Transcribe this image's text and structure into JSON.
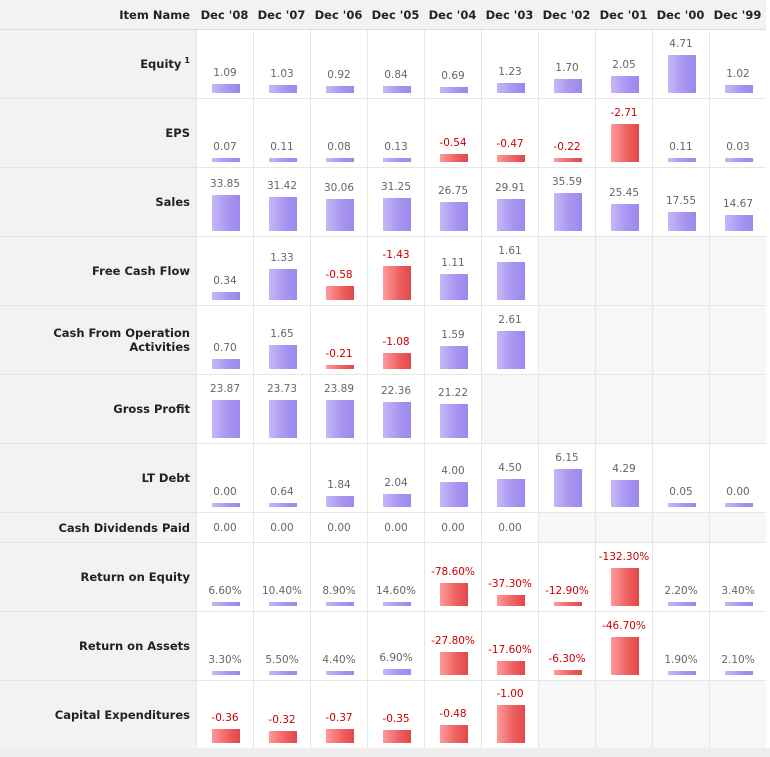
{
  "header": {
    "item_name": "Item Name",
    "periods": [
      "Dec '08",
      "Dec '07",
      "Dec '06",
      "Dec '05",
      "Dec '04",
      "Dec '03",
      "Dec '02",
      "Dec '01",
      "Dec '00",
      "Dec '99"
    ]
  },
  "colors": {
    "positive_bar": "#a996f0",
    "negative_bar": "#ee5f5f",
    "negative_text": "#cc0000"
  },
  "chart_data": {
    "type": "table",
    "title": "",
    "categories": [
      "Dec '08",
      "Dec '07",
      "Dec '06",
      "Dec '05",
      "Dec '04",
      "Dec '03",
      "Dec '02",
      "Dec '01",
      "Dec '00",
      "Dec '99"
    ],
    "rows": [
      {
        "label": "Equity",
        "footnote": "1",
        "values": [
          "1.09",
          "1.03",
          "0.92",
          "0.84",
          "0.69",
          "1.23",
          "1.70",
          "2.05",
          "4.71",
          "1.02"
        ]
      },
      {
        "label": "EPS",
        "values": [
          "0.07",
          "0.11",
          "0.08",
          "0.13",
          "-0.54",
          "-0.47",
          "-0.22",
          "-2.71",
          "0.11",
          "0.03"
        ]
      },
      {
        "label": "Sales",
        "values": [
          "33.85",
          "31.42",
          "30.06",
          "31.25",
          "26.75",
          "29.91",
          "35.59",
          "25.45",
          "17.55",
          "14.67"
        ]
      },
      {
        "label": "Free Cash Flow",
        "values": [
          "0.34",
          "1.33",
          "-0.58",
          "-1.43",
          "1.11",
          "1.61",
          "",
          "",
          "",
          ""
        ]
      },
      {
        "label": "Cash From Operation Activities",
        "values": [
          "0.70",
          "1.65",
          "-0.21",
          "-1.08",
          "1.59",
          "2.61",
          "",
          "",
          "",
          ""
        ]
      },
      {
        "label": "Gross Profit",
        "values": [
          "23.87",
          "23.73",
          "23.89",
          "22.36",
          "21.22",
          "",
          "",
          "",
          "",
          ""
        ]
      },
      {
        "label": "LT Debt",
        "values": [
          "0.00",
          "0.64",
          "1.84",
          "2.04",
          "4.00",
          "4.50",
          "6.15",
          "4.29",
          "0.05",
          "0.00"
        ]
      },
      {
        "label": "Cash Dividends Paid",
        "nobar": true,
        "values": [
          "0.00",
          "0.00",
          "0.00",
          "0.00",
          "0.00",
          "0.00",
          "",
          "",
          "",
          ""
        ]
      },
      {
        "label": "Return on Equity",
        "values": [
          "6.60%",
          "10.40%",
          "8.90%",
          "14.60%",
          "-78.60%",
          "-37.30%",
          "-12.90%",
          "-132.30%",
          "2.20%",
          "3.40%"
        ]
      },
      {
        "label": "Return on Assets",
        "values": [
          "3.30%",
          "5.50%",
          "4.40%",
          "6.90%",
          "-27.80%",
          "-17.60%",
          "-6.30%",
          "-46.70%",
          "1.90%",
          "2.10%"
        ]
      },
      {
        "label": "Capital Expenditures",
        "values": [
          "-0.36",
          "-0.32",
          "-0.37",
          "-0.35",
          "-0.48",
          "-1.00",
          "",
          "",
          "",
          ""
        ]
      }
    ]
  }
}
